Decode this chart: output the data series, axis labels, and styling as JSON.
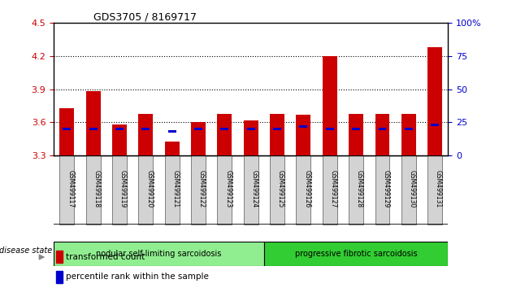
{
  "title": "GDS3705 / 8169717",
  "samples": [
    "GSM499117",
    "GSM499118",
    "GSM499119",
    "GSM499120",
    "GSM499121",
    "GSM499122",
    "GSM499123",
    "GSM499124",
    "GSM499125",
    "GSM499126",
    "GSM499127",
    "GSM499128",
    "GSM499129",
    "GSM499130",
    "GSM499131"
  ],
  "transformed_count": [
    3.73,
    3.88,
    3.58,
    3.68,
    3.43,
    3.6,
    3.68,
    3.62,
    3.68,
    3.67,
    4.2,
    3.68,
    3.68,
    3.68,
    4.28
  ],
  "percentile_rank": [
    20,
    20,
    20,
    20,
    18,
    20,
    20,
    20,
    20,
    22,
    20,
    20,
    20,
    20,
    23
  ],
  "y_min": 3.3,
  "y_max": 4.5,
  "y_ticks_left": [
    3.3,
    3.6,
    3.9,
    4.2,
    4.5
  ],
  "y_ticks_right": [
    0,
    25,
    50,
    75,
    100
  ],
  "bar_color": "#cc0000",
  "blue_color": "#0000cc",
  "group1_label": "nodular self-limiting sarcoidosis",
  "group2_label": "progressive fibrotic sarcoidosis",
  "group1_count": 8,
  "group2_count": 7,
  "legend_red": "transformed count",
  "legend_blue": "percentile rank within the sample",
  "disease_state_label": "disease state",
  "group1_color": "#90ee90",
  "group2_color": "#32cd32",
  "tick_label_bg": "#d3d3d3",
  "bar_width": 0.55
}
